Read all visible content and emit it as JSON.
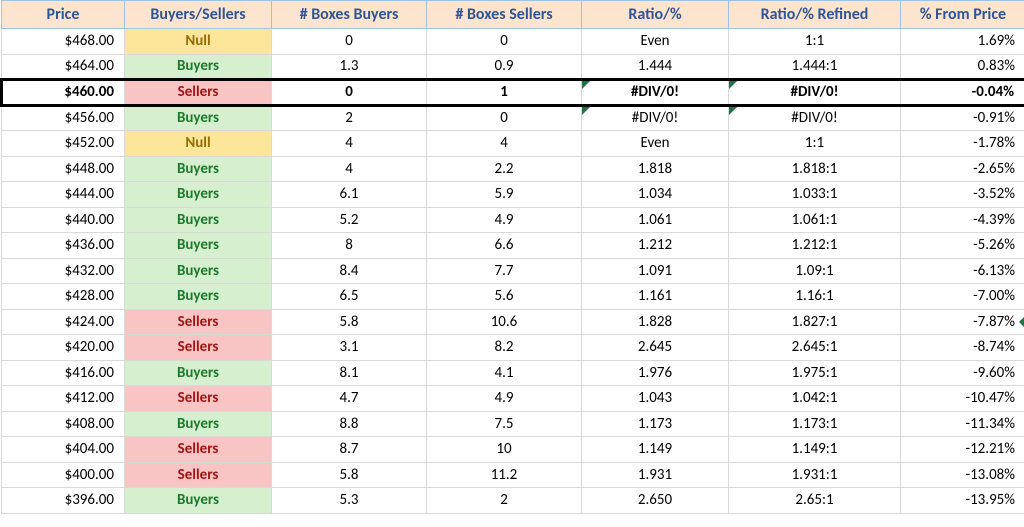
{
  "colors": {
    "header_bg": "#fde4cf",
    "header_fg": "#2f5597",
    "header_border": "#9dc3e6",
    "grid_border": "#d9d9d9",
    "bs_buyers_bg": "#d5efcf",
    "bs_buyers_fg": "#1d7a2d",
    "bs_sellers_bg": "#f8c4c4",
    "bs_sellers_fg": "#a31515",
    "bs_null_bg": "#fde699",
    "bs_null_fg": "#946c00",
    "error_triangle": "#217346",
    "highlight_border": "#000000"
  },
  "columns": [
    {
      "key": "price",
      "label": "Price",
      "class": "col-price"
    },
    {
      "key": "bs",
      "label": "Buyers/Sellers",
      "class": "col-bs"
    },
    {
      "key": "bbuy",
      "label": "# Boxes Buyers",
      "class": "col-bbuy"
    },
    {
      "key": "bsell",
      "label": "# Boxes Sellers",
      "class": "col-bsell"
    },
    {
      "key": "ratio",
      "label": "Ratio/%",
      "class": "col-ratio"
    },
    {
      "key": "refined",
      "label": "Ratio/% Refined",
      "class": "col-refined"
    },
    {
      "key": "pct",
      "label": "% From Price",
      "class": "col-pct"
    }
  ],
  "rows": [
    {
      "price": "$468.00",
      "bs": "Null",
      "bbuy": "0",
      "bsell": "0",
      "ratio": "Even",
      "refined": "1:1",
      "pct": "1.69%"
    },
    {
      "price": "$464.00",
      "bs": "Buyers",
      "bbuy": "1.3",
      "bsell": "0.9",
      "ratio": "1.444",
      "refined": "1.444:1",
      "pct": "0.83%"
    },
    {
      "price": "$460.00",
      "bs": "Sellers",
      "bbuy": "0",
      "bsell": "1",
      "ratio": "#DIV/0!",
      "refined": "#DIV/0!",
      "pct": "-0.04%",
      "highlight": true,
      "bold": true,
      "err_ratio": true,
      "err_refined": true
    },
    {
      "price": "$456.00",
      "bs": "Buyers",
      "bbuy": "2",
      "bsell": "0",
      "ratio": "#DIV/0!",
      "refined": "#DIV/0!",
      "pct": "-0.91%",
      "err_ratio": true,
      "err_refined": true
    },
    {
      "price": "$452.00",
      "bs": "Null",
      "bbuy": "4",
      "bsell": "4",
      "ratio": "Even",
      "refined": "1:1",
      "pct": "-1.78%"
    },
    {
      "price": "$448.00",
      "bs": "Buyers",
      "bbuy": "4",
      "bsell": "2.2",
      "ratio": "1.818",
      "refined": "1.818:1",
      "pct": "-2.65%"
    },
    {
      "price": "$444.00",
      "bs": "Buyers",
      "bbuy": "6.1",
      "bsell": "5.9",
      "ratio": "1.034",
      "refined": "1.033:1",
      "pct": "-3.52%"
    },
    {
      "price": "$440.00",
      "bs": "Buyers",
      "bbuy": "5.2",
      "bsell": "4.9",
      "ratio": "1.061",
      "refined": "1.061:1",
      "pct": "-4.39%"
    },
    {
      "price": "$436.00",
      "bs": "Buyers",
      "bbuy": "8",
      "bsell": "6.6",
      "ratio": "1.212",
      "refined": "1.212:1",
      "pct": "-5.26%"
    },
    {
      "price": "$432.00",
      "bs": "Buyers",
      "bbuy": "8.4",
      "bsell": "7.7",
      "ratio": "1.091",
      "refined": "1.09:1",
      "pct": "-6.13%"
    },
    {
      "price": "$428.00",
      "bs": "Buyers",
      "bbuy": "6.5",
      "bsell": "5.6",
      "ratio": "1.161",
      "refined": "1.16:1",
      "pct": "-7.00%"
    },
    {
      "price": "$424.00",
      "bs": "Sellers",
      "bbuy": "5.8",
      "bsell": "10.6",
      "ratio": "1.828",
      "refined": "1.827:1",
      "pct": "-7.87%",
      "edge_mark": true
    },
    {
      "price": "$420.00",
      "bs": "Sellers",
      "bbuy": "3.1",
      "bsell": "8.2",
      "ratio": "2.645",
      "refined": "2.645:1",
      "pct": "-8.74%"
    },
    {
      "price": "$416.00",
      "bs": "Buyers",
      "bbuy": "8.1",
      "bsell": "4.1",
      "ratio": "1.976",
      "refined": "1.975:1",
      "pct": "-9.60%"
    },
    {
      "price": "$412.00",
      "bs": "Sellers",
      "bbuy": "4.7",
      "bsell": "4.9",
      "ratio": "1.043",
      "refined": "1.042:1",
      "pct": "-10.47%"
    },
    {
      "price": "$408.00",
      "bs": "Buyers",
      "bbuy": "8.8",
      "bsell": "7.5",
      "ratio": "1.173",
      "refined": "1.173:1",
      "pct": "-11.34%"
    },
    {
      "price": "$404.00",
      "bs": "Sellers",
      "bbuy": "8.7",
      "bsell": "10",
      "ratio": "1.149",
      "refined": "1.149:1",
      "pct": "-12.21%"
    },
    {
      "price": "$400.00",
      "bs": "Sellers",
      "bbuy": "5.8",
      "bsell": "11.2",
      "ratio": "1.931",
      "refined": "1.931:1",
      "pct": "-13.08%"
    },
    {
      "price": "$396.00",
      "bs": "Buyers",
      "bbuy": "5.3",
      "bsell": "2",
      "ratio": "2.650",
      "refined": "2.65:1",
      "pct": "-13.95%"
    }
  ]
}
